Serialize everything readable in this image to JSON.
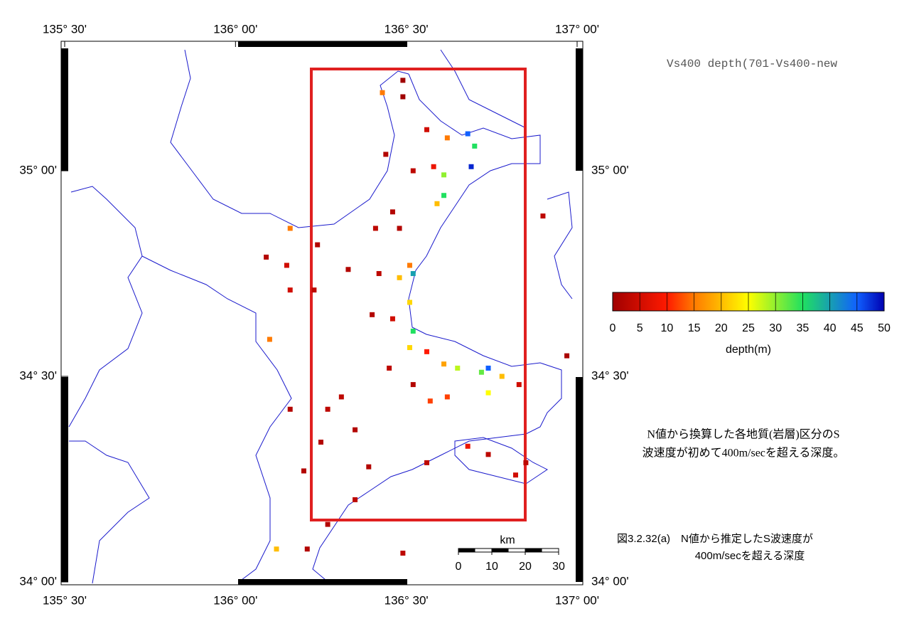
{
  "map": {
    "title": "Vs400 depth(701-Vs400-new",
    "xlim": [
      135.5,
      137.0
    ],
    "ylim": [
      34.0,
      35.315
    ],
    "xticks": [
      {
        "value": 135.5,
        "label": "135° 30'"
      },
      {
        "value": 136.0,
        "label": "136° 00'"
      },
      {
        "value": 136.5,
        "label": "136° 30'"
      },
      {
        "value": 137.0,
        "label": "137° 00'"
      }
    ],
    "yticks": [
      {
        "value": 34.0,
        "label": "34° 00'"
      },
      {
        "value": 34.5,
        "label": "34° 30'"
      },
      {
        "value": 35.0,
        "label": "35° 00'"
      }
    ],
    "colorbar": {
      "label": "depth(m)",
      "lim": [
        0,
        50
      ],
      "ticks": [
        0,
        5,
        10,
        15,
        20,
        25,
        30,
        35,
        40,
        45,
        50
      ]
    },
    "scale_bar": {
      "unit": "km",
      "ticks": [
        0,
        10,
        20,
        30
      ]
    },
    "note": [
      "N値から換算した各地質(岩層)区分のS",
      "波速度が初めて400m/secを超える深度。"
    ],
    "caption": [
      "図3.2.32(a)　N値から推定したS波速度が",
      "400m/secを超える深度"
    ],
    "points": {
      "lon": [
        136.49,
        136.43,
        136.49,
        136.56,
        136.62,
        136.68,
        136.7,
        136.69,
        136.61,
        136.61,
        136.59,
        136.58,
        136.52,
        136.44,
        136.46,
        136.41,
        136.48,
        136.24,
        136.16,
        136.09,
        136.15,
        136.16,
        136.1,
        136.23,
        136.33,
        136.42,
        136.51,
        136.52,
        136.48,
        136.51,
        136.4,
        136.46,
        136.52,
        136.51,
        136.56,
        136.61,
        136.65,
        136.74,
        136.72,
        136.78,
        136.74,
        136.83,
        136.62,
        136.57,
        136.52,
        136.45,
        136.35,
        136.27,
        136.16,
        136.25,
        136.39,
        136.56,
        136.68,
        136.74,
        136.85,
        136.82,
        136.35,
        136.27,
        136.21,
        136.12,
        136.49,
        136.9,
        136.97,
        136.2,
        136.31
      ],
      "lat": [
        35.22,
        35.19,
        35.18,
        35.1,
        35.08,
        35.09,
        35.06,
        35.01,
        34.99,
        34.94,
        34.92,
        35.01,
        35.0,
        35.04,
        34.9,
        34.86,
        34.86,
        34.82,
        34.86,
        34.79,
        34.77,
        34.71,
        34.59,
        34.71,
        34.76,
        34.75,
        34.77,
        34.75,
        34.74,
        34.68,
        34.65,
        34.64,
        34.61,
        34.57,
        34.56,
        34.53,
        34.52,
        34.52,
        34.51,
        34.5,
        34.46,
        34.48,
        34.45,
        34.44,
        34.48,
        34.52,
        34.37,
        34.42,
        34.42,
        34.34,
        34.28,
        34.29,
        34.33,
        34.31,
        34.29,
        34.26,
        34.2,
        34.14,
        34.08,
        34.08,
        34.07,
        34.89,
        34.55,
        34.27,
        34.45
      ],
      "depth": [
        0,
        15,
        0,
        5,
        15,
        45,
        35,
        48,
        30,
        35,
        20,
        8,
        3,
        2,
        2,
        3,
        2,
        2,
        15,
        2,
        5,
        5,
        15,
        3,
        2,
        3,
        15,
        40,
        20,
        22,
        2,
        5,
        35,
        22,
        10,
        18,
        28,
        45,
        32,
        20,
        25,
        5,
        12,
        12,
        2,
        3,
        2,
        3,
        2,
        2,
        2,
        3,
        8,
        3,
        3,
        5,
        3,
        2,
        2,
        20,
        3,
        3,
        1,
        2,
        3
      ]
    }
  }
}
